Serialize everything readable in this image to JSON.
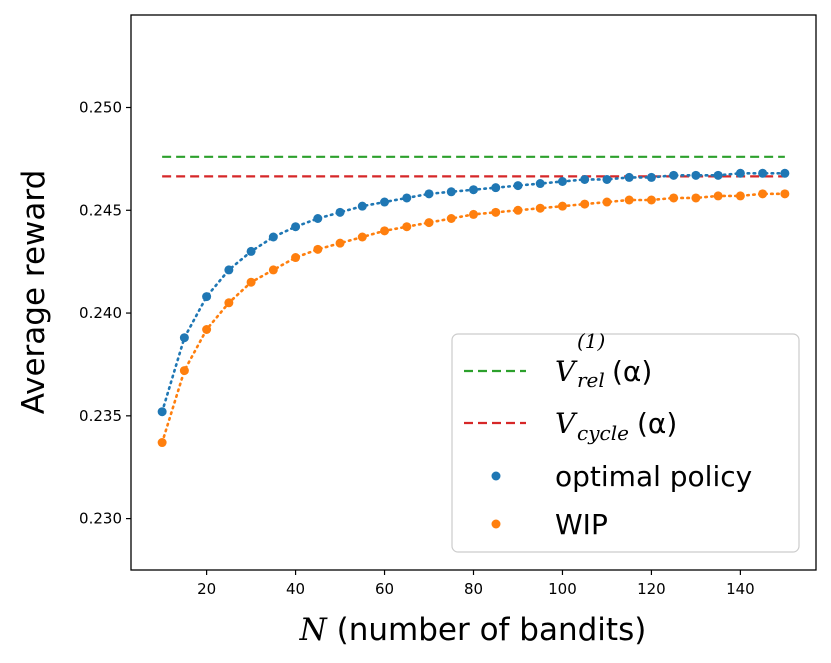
{
  "chart_data": {
    "type": "scatter",
    "title": "",
    "xlabel_var": "N",
    "xlabel_rest": " (number of bandits)",
    "ylabel": "Average reward",
    "xlim": [
      3,
      157
    ],
    "ylim": [
      0.2275,
      0.2545
    ],
    "xticks": [
      20,
      40,
      60,
      80,
      100,
      120,
      140
    ],
    "xtick_labels": [
      "20",
      "40",
      "60",
      "80",
      "100",
      "120",
      "140"
    ],
    "yticks": [
      0.23,
      0.235,
      0.24,
      0.245,
      0.25
    ],
    "ytick_labels": [
      "0.230",
      "0.235",
      "0.240",
      "0.245",
      "0.250"
    ],
    "hlines": [
      {
        "name": "V_rel^(1)(alpha)",
        "y": 0.2476,
        "x_start": 10,
        "x_end": 150,
        "color": "#2ca02c",
        "style": "dashed"
      },
      {
        "name": "V_cycle(alpha)",
        "y": 0.24665,
        "x_start": 10,
        "x_end": 150,
        "color": "#d62728",
        "style": "dashed"
      }
    ],
    "x": [
      10,
      15,
      20,
      25,
      30,
      35,
      40,
      45,
      50,
      55,
      60,
      65,
      70,
      75,
      80,
      85,
      90,
      95,
      100,
      105,
      110,
      115,
      120,
      125,
      130,
      135,
      140,
      145,
      150
    ],
    "series": [
      {
        "name": "optimal policy",
        "color": "#1f77b4",
        "values": [
          0.2352,
          0.2388,
          0.2408,
          0.2421,
          0.243,
          0.2437,
          0.2442,
          0.2446,
          0.2449,
          0.2452,
          0.2454,
          0.2456,
          0.2458,
          0.2459,
          0.246,
          0.2461,
          0.2462,
          0.2463,
          0.2464,
          0.2465,
          0.2465,
          0.2466,
          0.2466,
          0.2467,
          0.2467,
          0.2467,
          0.2468,
          0.2468,
          0.2468
        ]
      },
      {
        "name": "WIP",
        "color": "#ff7f0e",
        "values": [
          0.2337,
          0.2372,
          0.2392,
          0.2405,
          0.2415,
          0.2421,
          0.2427,
          0.2431,
          0.2434,
          0.2437,
          0.244,
          0.2442,
          0.2444,
          0.2446,
          0.2448,
          0.2449,
          0.245,
          0.2451,
          0.2452,
          0.2453,
          0.2454,
          0.2455,
          0.2455,
          0.2456,
          0.2456,
          0.2457,
          0.2457,
          0.2458,
          0.2458
        ]
      }
    ],
    "legend": {
      "position": "lower-right",
      "entries": [
        {
          "kind": "line",
          "color": "#2ca02c",
          "main": "V",
          "sub": "rel",
          "sup": "(1)",
          "arg": "(α)"
        },
        {
          "kind": "line",
          "color": "#d62728",
          "main": "V",
          "sub": "cycle",
          "arg": "(α)"
        },
        {
          "kind": "dot",
          "color": "#1f77b4",
          "text": "optimal policy"
        },
        {
          "kind": "dot",
          "color": "#ff7f0e",
          "text": "WIP"
        }
      ]
    }
  }
}
